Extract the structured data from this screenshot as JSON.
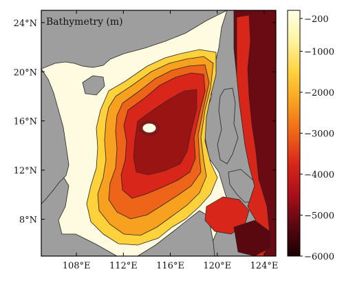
{
  "map": {
    "title": "Bathymetry (m)",
    "colorbar": {
      "ticks": [
        "−200",
        "−1000",
        "−2000",
        "−3000",
        "−4000",
        "−5000",
        "−6000"
      ],
      "values": [
        -200,
        -1000,
        -2000,
        -3000,
        -4000,
        -5000,
        -6000
      ],
      "range": [
        -6000,
        0
      ],
      "stops": [
        "#ffffe6",
        "#fff2a0",
        "#ffd23c",
        "#f8a020",
        "#ee6418",
        "#d9261a",
        "#a8101a",
        "#5a0810",
        "#1a0004"
      ]
    },
    "x_axis": {
      "ticks": [
        "108°E",
        "112°E",
        "116°E",
        "120°E",
        "124°E"
      ],
      "values": [
        108,
        112,
        116,
        120,
        124
      ],
      "range": [
        105,
        125
      ]
    },
    "y_axis": {
      "ticks": [
        "24°N",
        "20°N",
        "16°N",
        "12°N",
        "8°N"
      ],
      "values": [
        24,
        20,
        16,
        12,
        8
      ],
      "range": [
        5,
        25
      ]
    },
    "colors": {
      "land": "#9e9e9e",
      "shelf": "#fffbe0",
      "slope": "#ffd23c",
      "mid": "#f8a020",
      "deep": "#ee6418",
      "abyss": "#d9261a",
      "trench": "#6a0a12"
    }
  }
}
